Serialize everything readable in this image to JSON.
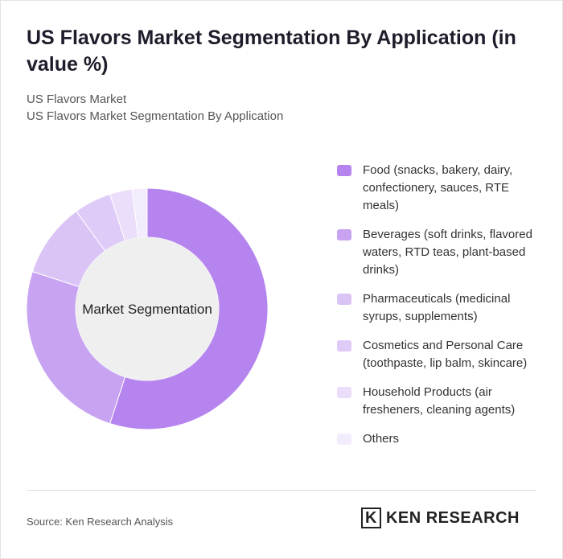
{
  "chart_data": {
    "type": "donut",
    "title": "US Flavors Market Segmentation By Application (in value %)",
    "subtitle": [
      "US Flavors Market",
      "US Flavors Market Segmentation By Application"
    ],
    "center_label": "Market Segmentation",
    "categories": [
      "Food (snacks, bakery, dairy, confectionery, sauces, RTE meals)",
      "Beverages (soft drinks, flavored waters, RTD teas, plant-based drinks)",
      "Pharmaceuticals (medicinal syrups, supplements)",
      "Cosmetics and Personal Care (toothpaste, lip balm, skincare)",
      "Household Products (air fresheners, cleaning agents)",
      "Others"
    ],
    "values": [
      55,
      25,
      10,
      5,
      3,
      2
    ],
    "colors": [
      "#b584ee",
      "#c7a3f1",
      "#dac4f6",
      "#dfcbf7",
      "#ebdefa",
      "#f3ecfc"
    ],
    "source": "Source: Ken Research Analysis",
    "brand": "KEN RESEARCH"
  }
}
